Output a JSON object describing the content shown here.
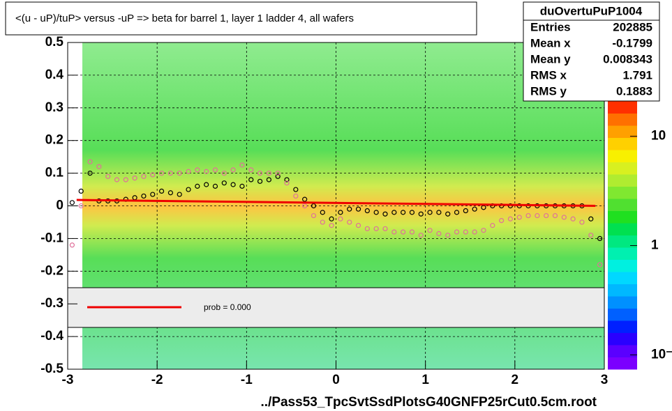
{
  "chart_data": {
    "type": "scatter",
    "title": "<(u - uP)/tuP> versus  -uP => beta for barrel 1, layer 1 ladder 4, all wafers",
    "xlabel": "../Pass53_TpcSvtSsdPlotsG40GNFP25rCut0.5cm.root",
    "xlim": [
      -3,
      3
    ],
    "xticks": [
      -3,
      -2,
      -1,
      0,
      1,
      2,
      3
    ],
    "ylim": [
      -0.5,
      0.5
    ],
    "yticks": [
      -0.5,
      -0.4,
      -0.3,
      -0.2,
      -0.1,
      0,
      0.1,
      0.2,
      0.3,
      0.4,
      0.5
    ],
    "grid": true,
    "zlim": [
      0.074,
      21
    ],
    "zscale": "log",
    "zticks": [
      {
        "value": 10,
        "label": "10"
      },
      {
        "value": 1,
        "label": "1"
      },
      {
        "value": 0.1,
        "label": "10⁻¹"
      }
    ],
    "stats": {
      "name": "duOvertuPuP1004",
      "rows": [
        {
          "label": "Entries",
          "value": 202885
        },
        {
          "label": "Mean x",
          "value": -0.1799
        },
        {
          "label": "Mean y",
          "value": 0.008343
        },
        {
          "label": "RMS x",
          "value": 1.791
        },
        {
          "label": "RMS y",
          "value": 0.1883
        }
      ]
    },
    "x": [
      -2.95,
      -2.85,
      -2.75,
      -2.65,
      -2.55,
      -2.45,
      -2.35,
      -2.25,
      -2.15,
      -2.05,
      -1.95,
      -1.85,
      -1.75,
      -1.65,
      -1.55,
      -1.45,
      -1.35,
      -1.25,
      -1.15,
      -1.05,
      -0.95,
      -0.85,
      -0.75,
      -0.65,
      -0.55,
      -0.45,
      -0.35,
      -0.25,
      -0.15,
      -0.05,
      0.05,
      0.15,
      0.25,
      0.35,
      0.45,
      0.55,
      0.65,
      0.75,
      0.85,
      0.95,
      1.05,
      1.15,
      1.25,
      1.35,
      1.45,
      1.55,
      1.65,
      1.75,
      1.85,
      1.95,
      2.05,
      2.15,
      2.25,
      2.35,
      2.45,
      2.55,
      2.65,
      2.75,
      2.85,
      2.95
    ],
    "series": [
      {
        "color": "#000000",
        "values": [
          0.01,
          0.045,
          0.1,
          0.015,
          0.015,
          0.015,
          0.02,
          0.025,
          0.03,
          0.035,
          0.045,
          0.04,
          0.035,
          0.05,
          0.06,
          0.065,
          0.06,
          0.07,
          0.065,
          0.06,
          0.08,
          0.075,
          0.08,
          0.09,
          0.08,
          0.05,
          0.02,
          0.0,
          -0.02,
          -0.04,
          -0.02,
          -0.01,
          -0.01,
          -0.015,
          -0.02,
          -0.025,
          -0.02,
          -0.02,
          -0.02,
          -0.025,
          -0.02,
          -0.02,
          -0.025,
          -0.02,
          -0.015,
          -0.01,
          -0.005,
          0.0,
          0.0,
          0.0,
          0.0,
          0.0,
          0.0,
          0.0,
          0.0,
          0.0,
          0.0,
          0.0,
          -0.04,
          -0.1
        ]
      },
      {
        "color": "#e0709a",
        "values": [
          -0.12,
          0.0,
          0.135,
          0.12,
          0.09,
          0.08,
          0.08,
          0.085,
          0.09,
          0.095,
          0.1,
          0.1,
          0.1,
          0.105,
          0.11,
          0.105,
          0.11,
          0.1,
          0.11,
          0.125,
          0.11,
          0.1,
          0.1,
          0.1,
          0.07,
          0.03,
          0.0,
          -0.03,
          -0.05,
          -0.06,
          -0.04,
          -0.05,
          -0.06,
          -0.07,
          -0.07,
          -0.07,
          -0.08,
          -0.08,
          -0.08,
          -0.09,
          -0.075,
          -0.085,
          -0.09,
          -0.08,
          -0.08,
          -0.08,
          -0.075,
          -0.06,
          -0.045,
          -0.04,
          -0.035,
          -0.03,
          -0.03,
          -0.03,
          -0.03,
          -0.035,
          -0.04,
          -0.05,
          -0.09,
          -0.18
        ]
      }
    ],
    "fit": {
      "name": "prob = 0.000",
      "color": "#ee0000",
      "x": [
        -2.9,
        2.9
      ],
      "values": [
        0.018,
        0.0
      ]
    }
  }
}
